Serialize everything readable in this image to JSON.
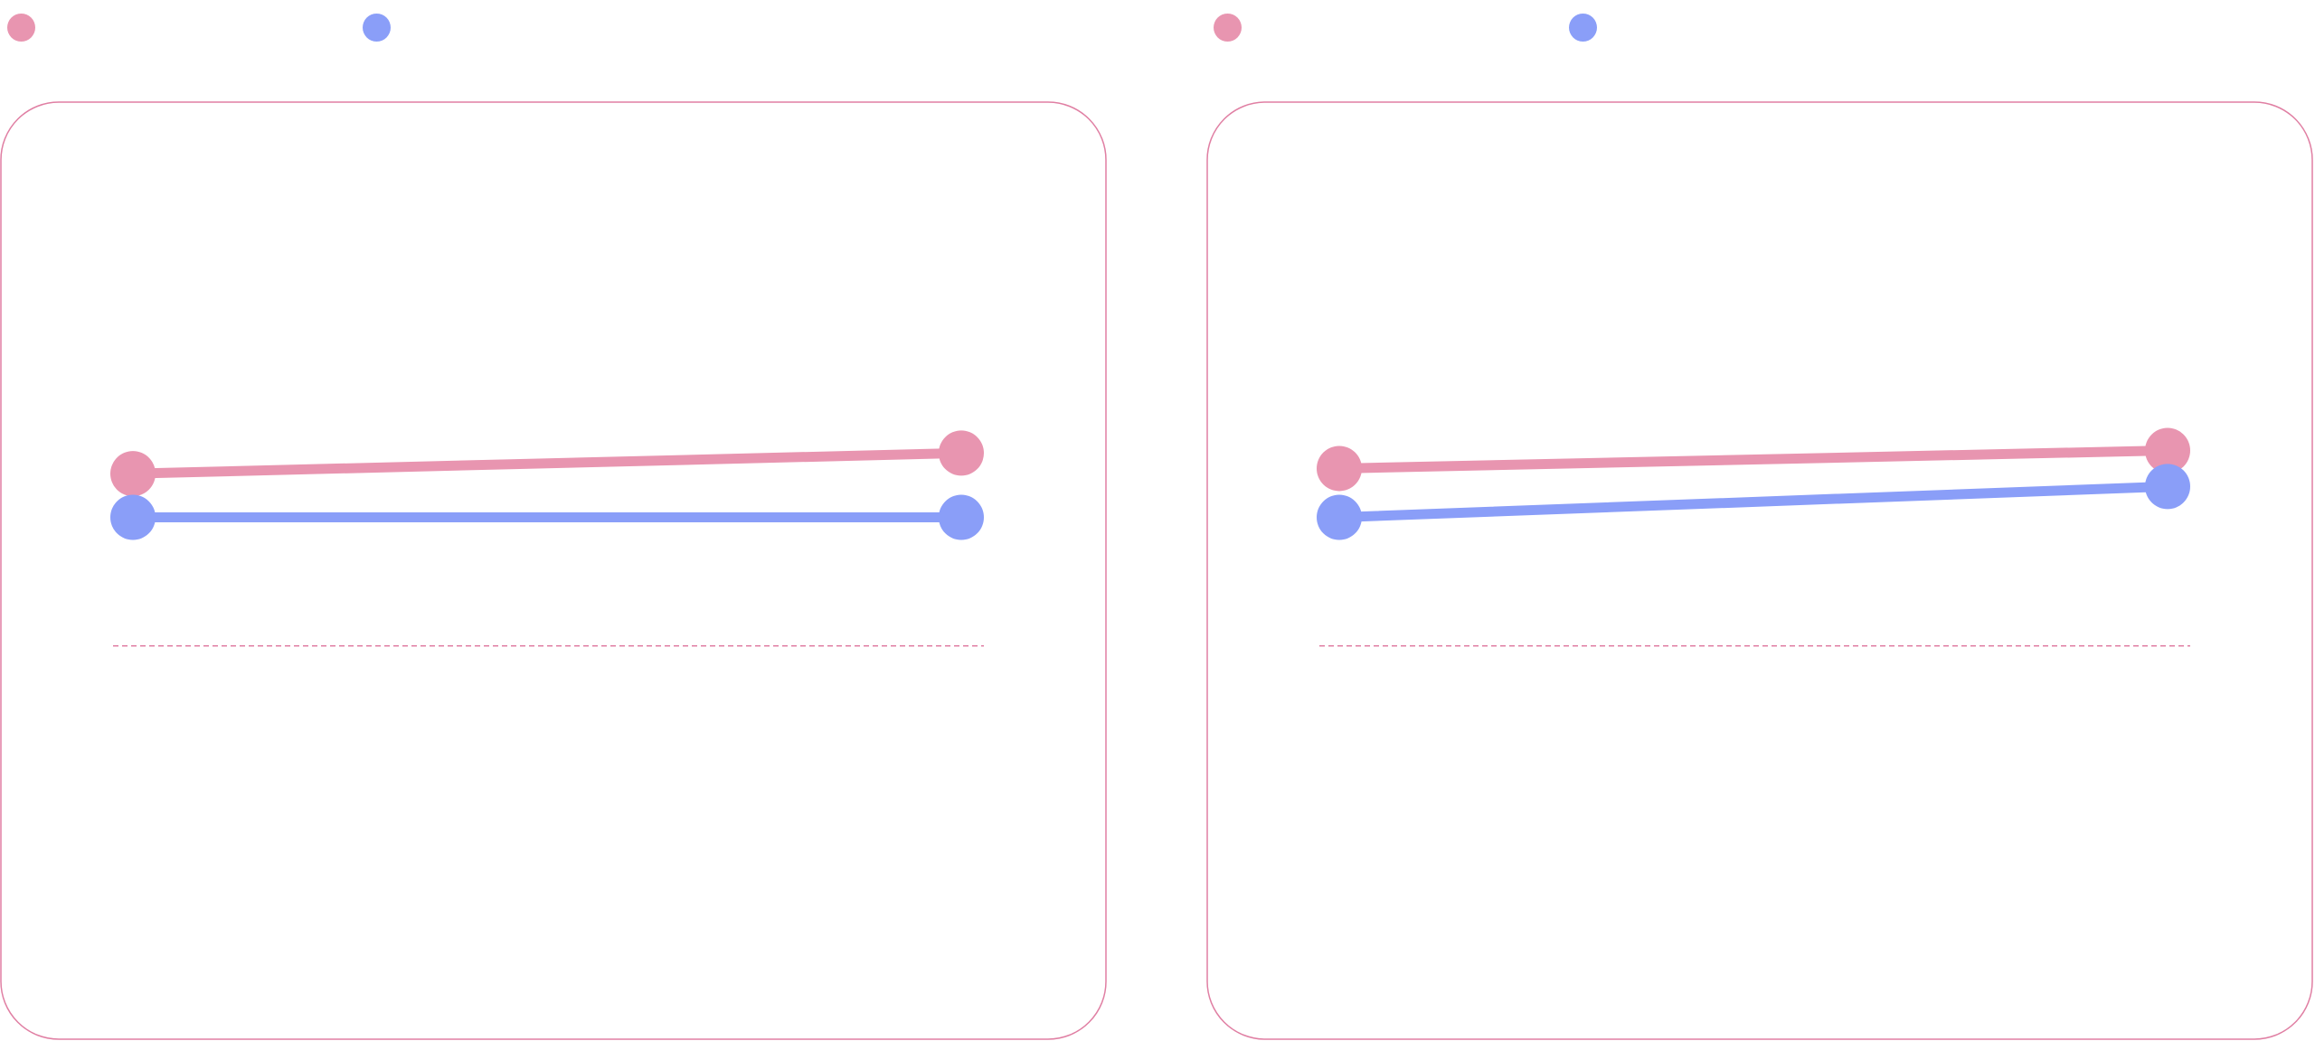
{
  "colors": {
    "series_a": "#e895b0",
    "series_b": "#8a9ef8",
    "frame": "#e07fa3",
    "background": "#ffffff"
  },
  "chart_data": [
    {
      "type": "line",
      "x": [
        0,
        1
      ],
      "ylim": [
        0,
        10
      ],
      "baseline": 2.5,
      "grid": false,
      "legend_placement": "top-left",
      "series": [
        {
          "color": "#e895b0",
          "values": [
            5.85,
            6.25
          ]
        },
        {
          "color": "#8a9ef8",
          "values": [
            5.0,
            5.0
          ]
        }
      ]
    },
    {
      "type": "line",
      "x": [
        0,
        1
      ],
      "ylim": [
        0,
        10
      ],
      "baseline": 2.5,
      "grid": false,
      "legend_placement": "top-left",
      "series": [
        {
          "color": "#e895b0",
          "values": [
            5.95,
            6.3
          ]
        },
        {
          "color": "#8a9ef8",
          "values": [
            5.0,
            5.6
          ]
        }
      ]
    }
  ]
}
